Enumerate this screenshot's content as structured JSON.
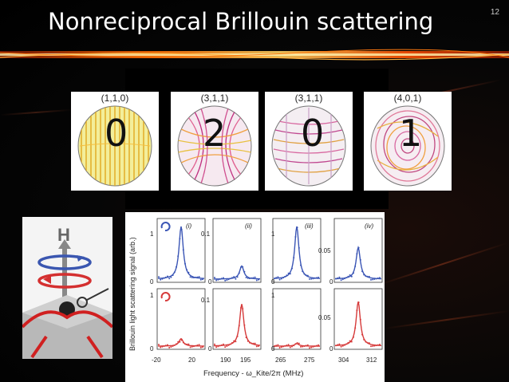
{
  "slide": {
    "title": "Nonreciprocal Brillouin scattering",
    "page_number": "12"
  },
  "modes": [
    {
      "label": "(1,1,0)",
      "digit": "0"
    },
    {
      "label": "(3,1,1)",
      "digit": "2"
    },
    {
      "label": "(3,1,1)",
      "digit": "0"
    },
    {
      "label": "(4,0,1)",
      "digit": "1"
    }
  ],
  "inset": {
    "field_letter": "H"
  },
  "figure": {
    "ylabel": "Brillouin light scattering signal (arb.)",
    "xlabel": "Frequency - ω_Kite/2π (MHz)",
    "panels": [
      {
        "id": "(i)",
        "yticks": [
          "1",
          "0"
        ],
        "xticks": [
          "-20",
          "20"
        ]
      },
      {
        "id": "(ii)",
        "yticks": [
          "0.1",
          "0"
        ],
        "xticks": [
          "190",
          "195"
        ]
      },
      {
        "id": "(iii)",
        "yticks": [
          "1",
          "0"
        ],
        "xticks": [
          "265",
          "275"
        ]
      },
      {
        "id": "(iv)",
        "yticks": [
          "0.05",
          "0"
        ],
        "xticks": [
          "304",
          "312"
        ]
      }
    ],
    "row2_yticks": [
      [
        "1",
        "0"
      ],
      [
        "0.1",
        "0"
      ],
      [
        "1",
        "0"
      ],
      [
        "0.05",
        "0"
      ]
    ],
    "colors": {
      "top": "#3a55b5",
      "bottom": "#d63a3a"
    }
  }
}
